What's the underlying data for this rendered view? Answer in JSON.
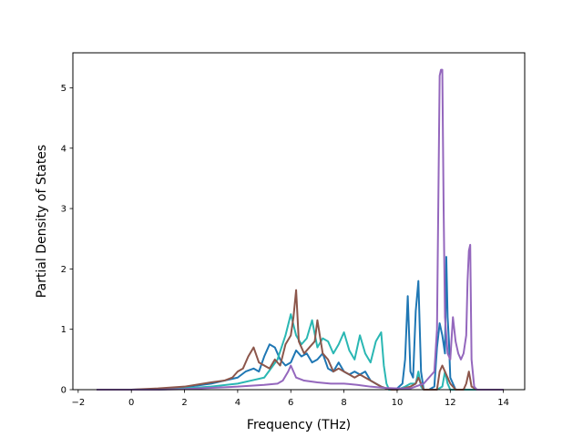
{
  "chart_data": {
    "type": "line",
    "xlabel": "Frequency (THz)",
    "ylabel": "Partial Density of States",
    "xlim": [
      -2.2,
      14.8
    ],
    "ylim": [
      0,
      5.58
    ],
    "xticks": [
      -2,
      0,
      2,
      4,
      6,
      8,
      10,
      12,
      14
    ],
    "xtick_labels": [
      "−2",
      "0",
      "2",
      "4",
      "6",
      "8",
      "10",
      "12",
      "14"
    ],
    "yticks": [
      0,
      1,
      2,
      3,
      4,
      5
    ],
    "ytick_labels": [
      "0",
      "1",
      "2",
      "3",
      "4",
      "5"
    ],
    "grid": false,
    "series": [
      {
        "color": "#1f77b4",
        "x": [
          -1.3,
          0,
          1,
          2,
          3,
          3.5,
          4,
          4.3,
          4.6,
          4.8,
          5.0,
          5.2,
          5.4,
          5.6,
          5.8,
          6.0,
          6.2,
          6.4,
          6.6,
          6.8,
          7.0,
          7.2,
          7.4,
          7.6,
          7.8,
          8.0,
          8.2,
          8.4,
          8.6,
          8.8,
          9.0,
          9.2,
          9.4,
          9.6,
          9.7,
          9.8,
          10.0,
          10.2,
          10.3,
          10.4,
          10.5,
          10.6,
          10.7,
          10.8,
          10.9,
          11.0,
          11.2,
          11.4,
          11.5,
          11.6,
          11.7,
          11.8,
          11.85,
          11.9,
          11.95,
          12.0,
          12.2,
          12.5,
          12.8,
          13,
          14
        ],
        "y": [
          0,
          0,
          0.01,
          0.04,
          0.1,
          0.15,
          0.2,
          0.3,
          0.35,
          0.3,
          0.55,
          0.75,
          0.7,
          0.5,
          0.4,
          0.45,
          0.65,
          0.55,
          0.6,
          0.45,
          0.5,
          0.6,
          0.35,
          0.3,
          0.45,
          0.3,
          0.25,
          0.3,
          0.25,
          0.3,
          0.15,
          0.1,
          0.05,
          0.02,
          0.0,
          0.0,
          0.02,
          0.1,
          0.5,
          1.55,
          0.3,
          0.2,
          1.3,
          1.8,
          0.3,
          0.0,
          0.0,
          0.05,
          0.7,
          1.1,
          0.9,
          0.6,
          2.2,
          1.2,
          0.8,
          0.2,
          0.0,
          0.0,
          0.0,
          0,
          0
        ]
      },
      {
        "color": "#2ab7b3",
        "x": [
          -1.3,
          0,
          1,
          2,
          3,
          4,
          4.5,
          5.0,
          5.5,
          5.8,
          6.0,
          6.2,
          6.4,
          6.6,
          6.8,
          7.0,
          7.2,
          7.4,
          7.6,
          7.8,
          8.0,
          8.2,
          8.4,
          8.6,
          8.8,
          9.0,
          9.2,
          9.4,
          9.5,
          9.6,
          9.7,
          10.0,
          10.3,
          10.5,
          10.7,
          10.8,
          10.9,
          11.0,
          11.5,
          11.7,
          11.8,
          11.9,
          12.0,
          12.5,
          13,
          14
        ],
        "y": [
          0,
          0,
          0,
          0.02,
          0.05,
          0.1,
          0.15,
          0.2,
          0.5,
          0.9,
          1.25,
          0.9,
          0.75,
          0.85,
          1.15,
          0.7,
          0.85,
          0.8,
          0.6,
          0.75,
          0.95,
          0.65,
          0.5,
          0.9,
          0.6,
          0.45,
          0.8,
          0.95,
          0.4,
          0.1,
          0.0,
          0.0,
          0.05,
          0.1,
          0.1,
          0.3,
          0.05,
          0.0,
          0.0,
          0.05,
          0.3,
          0.1,
          0.0,
          0,
          0,
          0
        ]
      },
      {
        "color": "#8c564b",
        "x": [
          -1.3,
          0,
          1,
          2,
          3,
          3.5,
          3.8,
          4.0,
          4.2,
          4.4,
          4.6,
          4.8,
          5.0,
          5.2,
          5.4,
          5.6,
          5.8,
          6.0,
          6.1,
          6.2,
          6.3,
          6.5,
          6.7,
          6.9,
          7.0,
          7.2,
          7.4,
          7.6,
          7.8,
          8.0,
          8.2,
          8.4,
          8.6,
          8.8,
          9.0,
          9.2,
          9.4,
          9.6,
          9.8,
          10.0,
          10.5,
          10.7,
          10.8,
          11.0,
          11.5,
          11.6,
          11.7,
          11.8,
          12.0,
          12.2,
          12.5,
          12.6,
          12.7,
          12.8,
          13,
          14
        ],
        "y": [
          0,
          0,
          0.02,
          0.05,
          0.12,
          0.15,
          0.2,
          0.3,
          0.35,
          0.55,
          0.7,
          0.45,
          0.4,
          0.35,
          0.5,
          0.4,
          0.75,
          0.9,
          1.2,
          1.65,
          0.8,
          0.6,
          0.7,
          0.8,
          1.15,
          0.6,
          0.5,
          0.3,
          0.35,
          0.3,
          0.25,
          0.2,
          0.25,
          0.2,
          0.15,
          0.1,
          0.05,
          0.02,
          0.0,
          0.0,
          0.05,
          0.1,
          0.2,
          0.0,
          0.0,
          0.3,
          0.4,
          0.3,
          0.1,
          0.0,
          0.0,
          0.1,
          0.3,
          0.05,
          0,
          0
        ]
      },
      {
        "color": "#9467bd",
        "x": [
          -1.3,
          0,
          1,
          2,
          3,
          4,
          5,
          5.5,
          5.7,
          5.9,
          6.0,
          6.2,
          6.5,
          7.0,
          7.5,
          8.0,
          8.5,
          9.0,
          9.5,
          10.0,
          10.5,
          11.0,
          11.4,
          11.5,
          11.6,
          11.65,
          11.7,
          11.75,
          11.8,
          11.9,
          12.0,
          12.1,
          12.2,
          12.3,
          12.4,
          12.5,
          12.6,
          12.65,
          12.7,
          12.75,
          12.8,
          12.9,
          13,
          14
        ],
        "y": [
          0,
          0,
          0,
          0.01,
          0.03,
          0.05,
          0.08,
          0.1,
          0.15,
          0.3,
          0.4,
          0.2,
          0.15,
          0.12,
          0.1,
          0.1,
          0.08,
          0.05,
          0.03,
          0.02,
          0.02,
          0.1,
          0.3,
          1.0,
          5.2,
          5.3,
          5.3,
          3.0,
          1.2,
          0.6,
          0.5,
          1.2,
          0.8,
          0.6,
          0.5,
          0.6,
          0.9,
          1.8,
          2.3,
          2.4,
          0.5,
          0.05,
          0,
          0
        ]
      }
    ]
  }
}
